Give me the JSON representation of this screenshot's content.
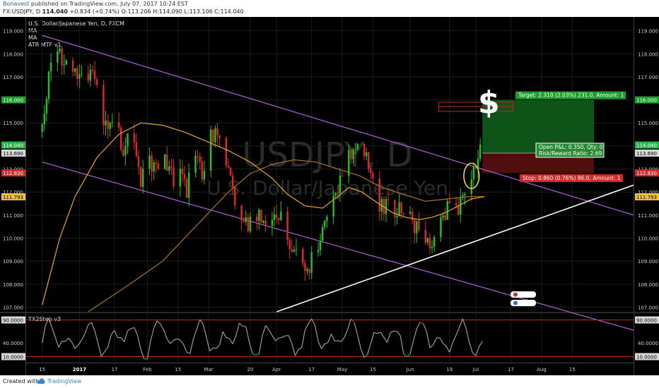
{
  "header": {
    "author": "Bonavest",
    "published_text": "published on TradingView.com, July 07, 2017 10:24 EST",
    "symbol": "FX:USDJPY, D",
    "last": "114.040",
    "change": "+0.834 (+0.74%)",
    "open": "O:113.206",
    "high": "H:114.090",
    "low": "L:113.106",
    "close": "C:114.040"
  },
  "legend": {
    "instrument": "U.S. Dollar/Japanese Yen, D, FXCM",
    "ma1": "MA",
    "ma2": "MA",
    "atr": "ATR MTF v1"
  },
  "watermark": {
    "symbol": "USDJPY, D",
    "name": "U.S. Dollar/Japanese Yen"
  },
  "oscillator_title": "TX2Step v3",
  "dollar_sign": "$",
  "position_tool": {
    "target_text": "Target: 2.310 (2.03%) 231.0, Amount: 1",
    "open_pl_text": "Open P&L: 0.350, Qty: 0",
    "rr_text": "Risk/Reward Ratio: 2.69",
    "stop_text": "Stop: 0.860 (0.76%) 86.0, Amount: 1"
  },
  "price_tags": [
    {
      "text": "116.000",
      "value": 116.0,
      "color": "#1e9e2d"
    },
    {
      "text": "114.040",
      "value": 114.04,
      "color": "#2bb34a"
    },
    {
      "text": "113.690",
      "value": 113.69,
      "color": "#d8d8d8"
    },
    {
      "text": "112.830",
      "value": 112.83,
      "color": "#d12a2a"
    },
    {
      "text": "111.793",
      "value": 111.793,
      "color": "#f0c040"
    }
  ],
  "osc_tags": [
    {
      "text": "90.0000",
      "value": 90,
      "color": "#d8d8d8"
    },
    {
      "text": "10.0000",
      "value": 10,
      "color": "#d8d8d8"
    }
  ],
  "footer": {
    "created_with": "Created with",
    "brand": "TradingView"
  },
  "colors": {
    "background": "#000000",
    "up_candle": "#22c322",
    "down_candle": "#e02828",
    "channel": "#b060d8",
    "trendline": "#ffffff",
    "ma_fast": "#e8a820",
    "ma_slow": "#a8741e",
    "target_zone": "#0f5c19",
    "stop_zone": "#5a1010",
    "osc_line": "#9a9a9a",
    "osc_overbought": "#c82828",
    "osc_oversold": "#22b822"
  },
  "chart_data": {
    "type": "candlestick",
    "title": "U.S. Dollar/Japanese Yen, D, FXCM",
    "symbol": "USDJPY",
    "timeframe": "D",
    "ylim": [
      106.8,
      119.6
    ],
    "y_ticks": [
      107,
      108,
      109,
      110,
      111,
      112,
      113,
      114,
      115,
      116,
      117,
      118,
      119
    ],
    "y_tick_labels": [
      "107.000",
      "108.000",
      "109.000",
      "110.000",
      "111.000",
      "112.000",
      "113.000",
      "114.000",
      "115.000",
      "116.000",
      "117.000",
      "118.000",
      "119.000"
    ],
    "x_ticks": [
      {
        "label": "15",
        "day": 0
      },
      {
        "label": "2017",
        "day": 17
      },
      {
        "label": "17",
        "day": 33
      },
      {
        "label": "Feb",
        "day": 48
      },
      {
        "label": "15",
        "day": 62
      },
      {
        "label": "Mar",
        "day": 76
      },
      {
        "label": "20",
        "day": 95
      },
      {
        "label": "Apr",
        "day": 107
      },
      {
        "label": "17",
        "day": 123
      },
      {
        "label": "May",
        "day": 137
      },
      {
        "label": "15",
        "day": 151
      },
      {
        "label": "Jun",
        "day": 168
      },
      {
        "label": "19",
        "day": 186
      },
      {
        "label": "Jul",
        "day": 198
      },
      {
        "label": "17",
        "day": 214
      },
      {
        "label": "Aug",
        "day": 228
      },
      {
        "label": "15",
        "day": 242
      }
    ],
    "x_range": [
      -7,
      270
    ],
    "price_path": [
      [
        0,
        114.6
      ],
      [
        3,
        117.2
      ],
      [
        6,
        118.4
      ],
      [
        10,
        117.6
      ],
      [
        14,
        117.0
      ],
      [
        18,
        117.4
      ],
      [
        20,
        116.4
      ],
      [
        23,
        117.3
      ],
      [
        27,
        115.2
      ],
      [
        30,
        114.4
      ],
      [
        34,
        115.1
      ],
      [
        37,
        113.8
      ],
      [
        41,
        114.6
      ],
      [
        45,
        112.6
      ],
      [
        48,
        113.6
      ],
      [
        52,
        112.8
      ],
      [
        56,
        113.7
      ],
      [
        60,
        112.3
      ],
      [
        63,
        113.3
      ],
      [
        66,
        112.2
      ],
      [
        69,
        113.4
      ],
      [
        73,
        112.9
      ],
      [
        76,
        114.2
      ],
      [
        80,
        114.6
      ],
      [
        82,
        114.1
      ],
      [
        85,
        113.2
      ],
      [
        88,
        111.7
      ],
      [
        92,
        111.0
      ],
      [
        96,
        110.4
      ],
      [
        99,
        111.1
      ],
      [
        103,
        110.8
      ],
      [
        107,
        111.3
      ],
      [
        110,
        110.6
      ],
      [
        114,
        109.6
      ],
      [
        118,
        108.7
      ],
      [
        122,
        108.9
      ],
      [
        126,
        109.3
      ],
      [
        130,
        111.0
      ],
      [
        134,
        111.7
      ],
      [
        137,
        112.7
      ],
      [
        140,
        113.6
      ],
      [
        143,
        114.3
      ],
      [
        147,
        113.6
      ],
      [
        151,
        112.6
      ],
      [
        153,
        111.2
      ],
      [
        157,
        111.3
      ],
      [
        161,
        111.0
      ],
      [
        165,
        111.3
      ],
      [
        168,
        110.7
      ],
      [
        171,
        110.4
      ],
      [
        174,
        110.1
      ],
      [
        177,
        109.7
      ],
      [
        180,
        110.8
      ],
      [
        183,
        111.1
      ],
      [
        186,
        111.4
      ],
      [
        189,
        111.2
      ],
      [
        192,
        111.9
      ],
      [
        195,
        112.6
      ],
      [
        197,
        113.2
      ],
      [
        199,
        113.6
      ],
      [
        202,
        114.04
      ]
    ],
    "ma_fast": [
      [
        0,
        107.1
      ],
      [
        8,
        110.0
      ],
      [
        15,
        111.8
      ],
      [
        25,
        113.5
      ],
      [
        35,
        114.5
      ],
      [
        45,
        115.0
      ],
      [
        55,
        114.9
      ],
      [
        65,
        114.6
      ],
      [
        75,
        114.2
      ],
      [
        85,
        113.8
      ],
      [
        95,
        113.3
      ],
      [
        105,
        112.6
      ],
      [
        112,
        111.9
      ],
      [
        120,
        111.4
      ],
      [
        128,
        111.3
      ],
      [
        135,
        111.8
      ],
      [
        140,
        112.2
      ],
      [
        146,
        112.0
      ],
      [
        152,
        111.6
      ],
      [
        160,
        111.1
      ],
      [
        166,
        110.9
      ],
      [
        172,
        110.8
      ],
      [
        178,
        110.9
      ],
      [
        184,
        111.1
      ],
      [
        190,
        111.4
      ],
      [
        196,
        111.7
      ],
      [
        202,
        111.8
      ]
    ],
    "ma_slow": [
      [
        21,
        106.8
      ],
      [
        40,
        108.0
      ],
      [
        55,
        109.0
      ],
      [
        70,
        110.5
      ],
      [
        85,
        112.0
      ],
      [
        95,
        112.8
      ],
      [
        105,
        113.2
      ],
      [
        115,
        113.4
      ],
      [
        125,
        113.3
      ],
      [
        135,
        113.0
      ],
      [
        145,
        112.7
      ],
      [
        155,
        112.2
      ],
      [
        165,
        111.9
      ],
      [
        175,
        111.6
      ],
      [
        185,
        111.7
      ],
      [
        195,
        111.8
      ],
      [
        202,
        111.8
      ]
    ],
    "channel_upper": [
      [
        0,
        118.8
      ],
      [
        270,
        111.0
      ]
    ],
    "channel_lower": [
      [
        0,
        113.3
      ],
      [
        270,
        106.0
      ]
    ],
    "trendline": [
      [
        107,
        106.8
      ],
      [
        270,
        112.3
      ]
    ],
    "position": {
      "entry": 113.69,
      "target": 116.0,
      "stop": 112.83,
      "start_day": 201,
      "end_day": 252
    },
    "target_ghost_zone": {
      "start_day": 181,
      "end_day": 215,
      "top": 115.9,
      "bottom": 115.5
    },
    "highlight_ellipse": {
      "center_day": 196,
      "center_price": 112.7,
      "rx_days": 3.5,
      "ry_price": 0.55
    },
    "oscillator": {
      "name": "TX2Step v3",
      "ylim": [
        0,
        100
      ],
      "levels": [
        10,
        90
      ],
      "level_labels": [
        "10.0000",
        "40.0000",
        "90.0000"
      ],
      "ticks": [
        10,
        40,
        90
      ]
    }
  }
}
